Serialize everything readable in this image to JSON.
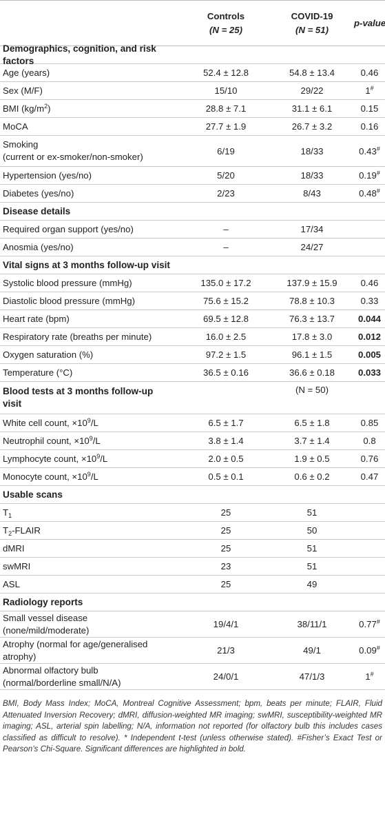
{
  "header": {
    "controls_label": "Controls",
    "controls_n": "(N = 25)",
    "covid_label": "COVID-19",
    "covid_n": "(N = 51)",
    "p_label": "p-value*"
  },
  "rows": [
    {
      "kind": "section",
      "label": "Demographics, cognition, and risk factors"
    },
    {
      "kind": "data",
      "label": "Age (years)",
      "controls": "52.4 ± 12.8",
      "covid": "54.8 ± 13.4",
      "p": "0.46"
    },
    {
      "kind": "data",
      "label": "Sex (M/F)",
      "controls": "15/10",
      "covid": "29/22",
      "p": "1",
      "p_sup": "#"
    },
    {
      "kind": "data",
      "label": "BMI (kg/m",
      "label_sup": "2",
      "label_after": ")",
      "controls": "28.8 ± 7.1",
      "covid": "31.1 ± 6.1",
      "p": "0.15"
    },
    {
      "kind": "data",
      "label": "MoCA",
      "controls": "27.7 ± 1.9",
      "covid": "26.7 ± 3.2",
      "p": "0.16"
    },
    {
      "kind": "data2",
      "label": "Smoking",
      "label2": "(current or ex-smoker/non-smoker)",
      "controls": "6/19",
      "covid": "18/33",
      "p": "0.43",
      "p_sup": "#"
    },
    {
      "kind": "data",
      "label": "Hypertension (yes/no)",
      "controls": "5/20",
      "covid": "18/33",
      "p": "0.19",
      "p_sup": "#"
    },
    {
      "kind": "data",
      "label": "Diabetes (yes/no)",
      "controls": "2/23",
      "covid": "8/43",
      "p": "0.48",
      "p_sup": "#"
    },
    {
      "kind": "section",
      "label": "Disease details"
    },
    {
      "kind": "data",
      "label": "Required organ support (yes/no)",
      "controls": "–",
      "covid": "17/34",
      "p": ""
    },
    {
      "kind": "data",
      "label": "Anosmia (yes/no)",
      "controls": "–",
      "covid": "24/27",
      "p": ""
    },
    {
      "kind": "section",
      "label": "Vital signs at 3 months follow-up visit"
    },
    {
      "kind": "data",
      "label": "Systolic blood pressure (mmHg)",
      "controls": "135.0 ± 17.2",
      "covid": "137.9 ± 15.9",
      "p": "0.46"
    },
    {
      "kind": "data",
      "label": "Diastolic blood pressure (mmHg)",
      "controls": "75.6 ± 15.2",
      "covid": "78.8 ± 10.3",
      "p": "0.33"
    },
    {
      "kind": "data",
      "label": "Heart rate (bpm)",
      "controls": "69.5 ± 12.8",
      "covid": "76.3 ± 13.7",
      "p": "0.044",
      "p_bold": true
    },
    {
      "kind": "data",
      "label": "Respiratory rate (breaths per minute)",
      "controls": "16.0 ± 2.5",
      "covid": "17.8 ± 3.0",
      "p": "0.012",
      "p_bold": true
    },
    {
      "kind": "data",
      "label": "Oxygen saturation (%)",
      "controls": "97.2 ± 1.5",
      "covid": "96.1 ± 1.5",
      "p": "0.005",
      "p_bold": true
    },
    {
      "kind": "data",
      "label": "Temperature (°C)",
      "controls": "36.5 ± 0.16",
      "covid": "36.6 ± 0.18",
      "p": "0.033",
      "p_bold": true
    },
    {
      "kind": "section2",
      "label": "Blood tests at 3 months follow-up",
      "label2": "visit",
      "covid": "(N = 50)"
    },
    {
      "kind": "data",
      "label": "White cell count, ×10",
      "label_sup": "9",
      "label_after": "/L",
      "controls": "6.5 ± 1.7",
      "covid": "6.5 ± 1.8",
      "p": "0.85"
    },
    {
      "kind": "data",
      "label": "Neutrophil count, ×10",
      "label_sup": "9",
      "label_after": "/L",
      "controls": "3.8 ± 1.4",
      "covid": "3.7 ± 1.4",
      "p": "0.8"
    },
    {
      "kind": "data",
      "label": "Lymphocyte count, ×10",
      "label_sup": "9",
      "label_after": "/L",
      "controls": "2.0 ± 0.5",
      "covid": "1.9 ± 0.5",
      "p": "0.76"
    },
    {
      "kind": "data",
      "label": "Monocyte count, ×10",
      "label_sup": "9",
      "label_after": "/L",
      "controls": "0.5 ± 0.1",
      "covid": "0.6 ± 0.2",
      "p": "0.47"
    },
    {
      "kind": "section",
      "label": "Usable scans"
    },
    {
      "kind": "data",
      "label": "T",
      "label_sub": "1",
      "label_after": "",
      "controls": "25",
      "covid": "51",
      "p": ""
    },
    {
      "kind": "data",
      "label": "T",
      "label_sub": "2",
      "label_after": "-FLAIR",
      "controls": "25",
      "covid": "50",
      "p": ""
    },
    {
      "kind": "data",
      "label": "dMRI",
      "controls": "25",
      "covid": "51",
      "p": ""
    },
    {
      "kind": "data",
      "label": "swMRI",
      "controls": "23",
      "covid": "51",
      "p": ""
    },
    {
      "kind": "data",
      "label": "ASL",
      "controls": "25",
      "covid": "49",
      "p": ""
    },
    {
      "kind": "section",
      "label": "Radiology reports"
    },
    {
      "kind": "data2",
      "label": "Small vessel disease",
      "label2": "(none/mild/moderate)",
      "controls": "19/4/1",
      "covid": "38/11/1",
      "p": "0.77",
      "p_sup": "#"
    },
    {
      "kind": "data2",
      "label": "Atrophy (normal for age/generalised",
      "label2": "atrophy)",
      "controls": "21/3",
      "covid": "49/1",
      "p": "0.09",
      "p_sup": "#"
    },
    {
      "kind": "data2",
      "label": "Abnormal olfactory bulb",
      "label2": "(normal/borderline small/N/A)",
      "controls": "24/0/1",
      "covid": "47/1/3",
      "p": "1",
      "p_sup": "#"
    }
  ],
  "footnote": "BMI, Body Mass Index; MoCA, Montreal Cognitive Assessment; bpm, beats per minute; FLAIR, Fluid Attenuated Inversion Recovery; dMRI, diffusion-weighted MR imaging; swMRI, susceptibility-weighted MR imaging; ASL, arterial spin labelling; N/A, information not reported (for olfactory bulb this includes cases classified as difficult to resolve). * Independent t-test (unless otherwise stated). #Fisher’s Exact Test or Pearson’s Chi-Square. Significant differences are highlighted in bold."
}
